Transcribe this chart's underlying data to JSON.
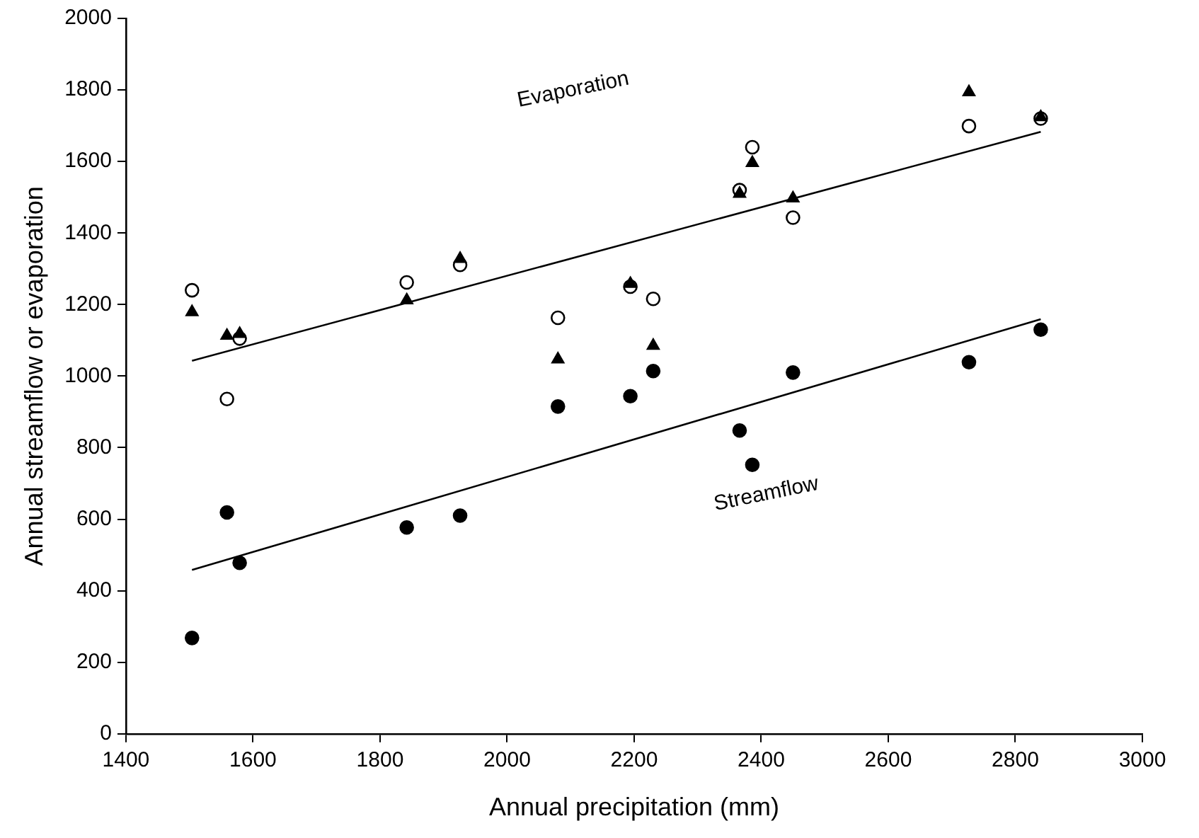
{
  "chart_data": {
    "type": "scatter",
    "xlabel": "Annual precipitation (mm)",
    "ylabel": "Annual streamflow or evaporation",
    "xlim": [
      1400,
      3000
    ],
    "xticks": [
      1400,
      1600,
      1800,
      2000,
      2200,
      2400,
      2600,
      2800,
      3000
    ],
    "ylim": [
      0,
      2000
    ],
    "yticks": [
      0,
      200,
      400,
      600,
      800,
      1000,
      1200,
      1400,
      1600,
      1800,
      2000
    ],
    "grid": false,
    "legend": false,
    "series": [
      {
        "marker": "circle",
        "color": "#ffffff",
        "x": [
          1504,
          1559,
          1579,
          1842,
          1926,
          2080,
          2194,
          2230,
          2366,
          2386,
          2450,
          2727,
          2840
        ],
        "values": [
          1240,
          936,
          1105,
          1262,
          1311,
          1163,
          1250,
          1216,
          1520,
          1640,
          1443,
          1699,
          1720
        ]
      },
      {
        "marker": "triangle",
        "color": "#000000",
        "x": [
          1504,
          1559,
          1579,
          1842,
          1926,
          2080,
          2194,
          2230,
          2366,
          2386,
          2450,
          2727,
          2840
        ],
        "values": [
          1179,
          1113,
          1118,
          1212,
          1328,
          1047,
          1258,
          1085,
          1510,
          1596,
          1497,
          1794,
          1724
        ]
      },
      {
        "marker": "circle",
        "color": "#000000",
        "x": [
          1504,
          1559,
          1579,
          1842,
          1926,
          2080,
          2194,
          2230,
          2366,
          2386,
          2450,
          2727,
          2840
        ],
        "values": [
          268,
          619,
          478,
          577,
          610,
          915,
          944,
          1014,
          848,
          752,
          1010,
          1039,
          1130
        ]
      },
      {
        "type": "line",
        "marker": "none",
        "color": "#000000",
        "x": [
          1504,
          2840
        ],
        "values": [
          1043,
          1683
        ]
      },
      {
        "type": "line",
        "marker": "none",
        "color": "#000000",
        "x": [
          1504,
          2840
        ],
        "values": [
          458,
          1159
        ]
      }
    ],
    "annotations": [
      "Evaporation",
      "Streamflow"
    ]
  }
}
